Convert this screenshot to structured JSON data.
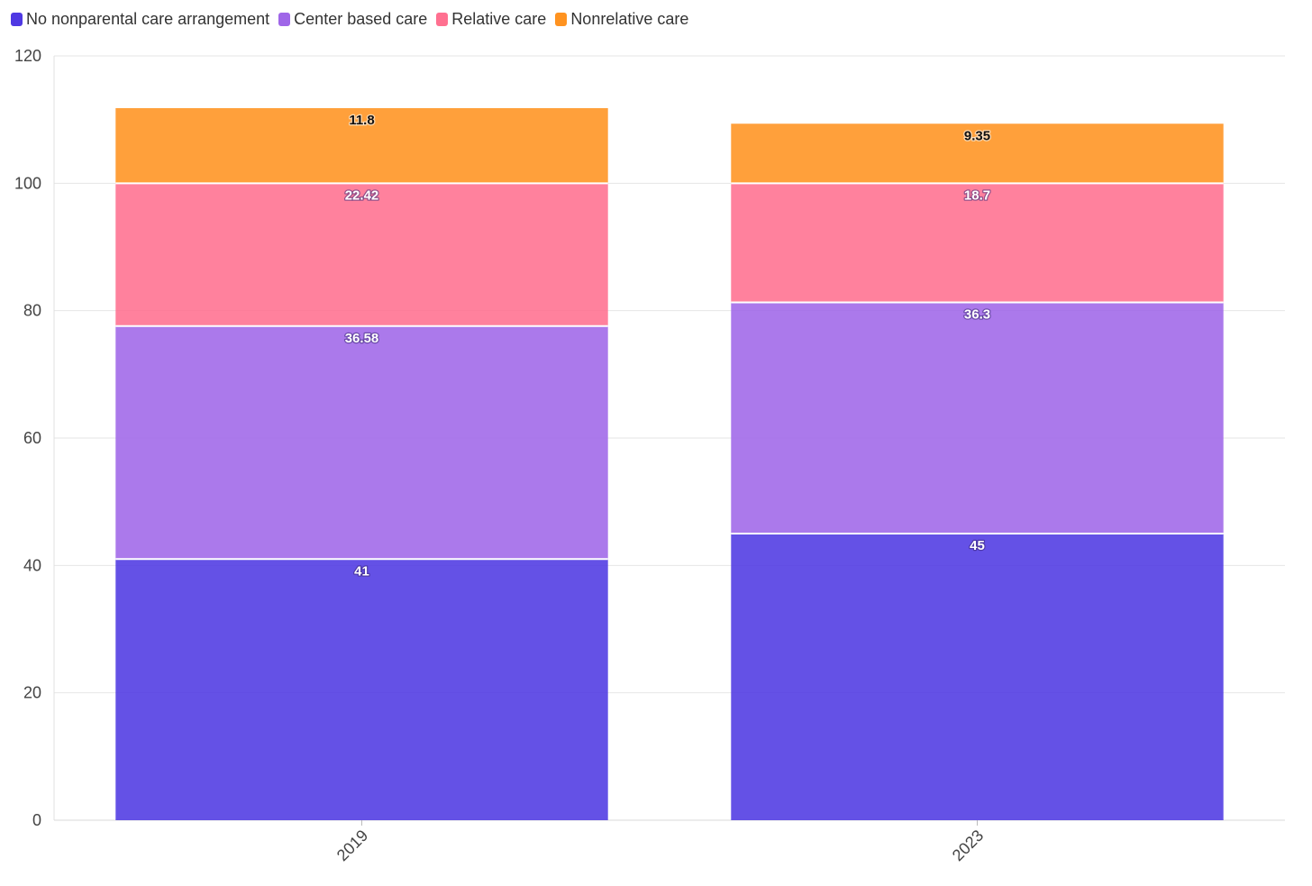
{
  "chart_data": {
    "type": "bar",
    "stacked": true,
    "categories": [
      "2019",
      "2023"
    ],
    "series": [
      {
        "name": "No nonparental care arrangement",
        "values": [
          41,
          45
        ],
        "color": "#4f39e3",
        "label_color": "#ffffff"
      },
      {
        "name": "Center based care",
        "values": [
          36.58,
          36.3
        ],
        "color": "#9f66e8",
        "label_color": "#ffffff"
      },
      {
        "name": "Relative care",
        "values": [
          22.42,
          18.7
        ],
        "color": "#ff7090",
        "label_color": "#ffffff"
      },
      {
        "name": "Nonrelative care",
        "values": [
          11.8,
          9.35
        ],
        "color": "#ff9320",
        "label_color": "#111111"
      }
    ],
    "y_ticks": [
      "0",
      "20",
      "40",
      "60",
      "80",
      "100",
      "120"
    ],
    "ylim": [
      0,
      120
    ],
    "grid": true,
    "legend_position": "top-left",
    "xlabel": "",
    "ylabel": ""
  }
}
